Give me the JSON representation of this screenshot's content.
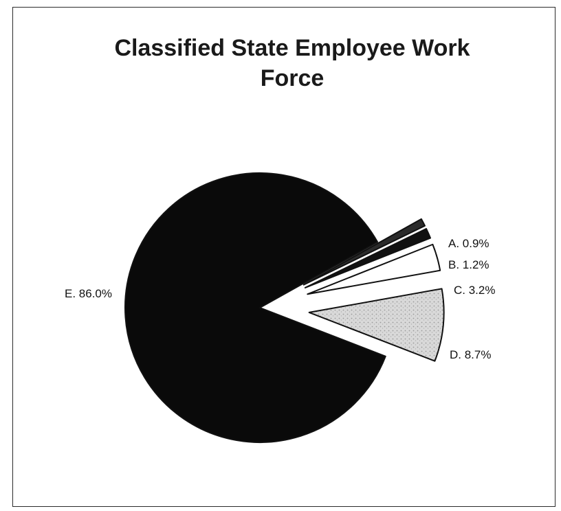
{
  "chart_data": {
    "type": "pie",
    "title": "Classified State Employee Work Force",
    "slices": [
      {
        "label": "A. 0.9%",
        "name": "A",
        "value": 0.9,
        "color": "#2b2b2b",
        "exploded": true
      },
      {
        "label": "B. 1.2%",
        "name": "B",
        "value": 1.2,
        "color": "#111111",
        "exploded": true
      },
      {
        "label": "C. 3.2%",
        "name": "C",
        "value": 3.2,
        "color": "#ffffff",
        "exploded": true
      },
      {
        "label": "D. 8.7%",
        "name": "D",
        "value": 8.7,
        "color": "#d9d9d9",
        "exploded": true
      },
      {
        "label": "E. 86.0%",
        "name": "E",
        "value": 86.0,
        "color": "#0a0a0a",
        "exploded": false
      }
    ],
    "legend": "none"
  }
}
